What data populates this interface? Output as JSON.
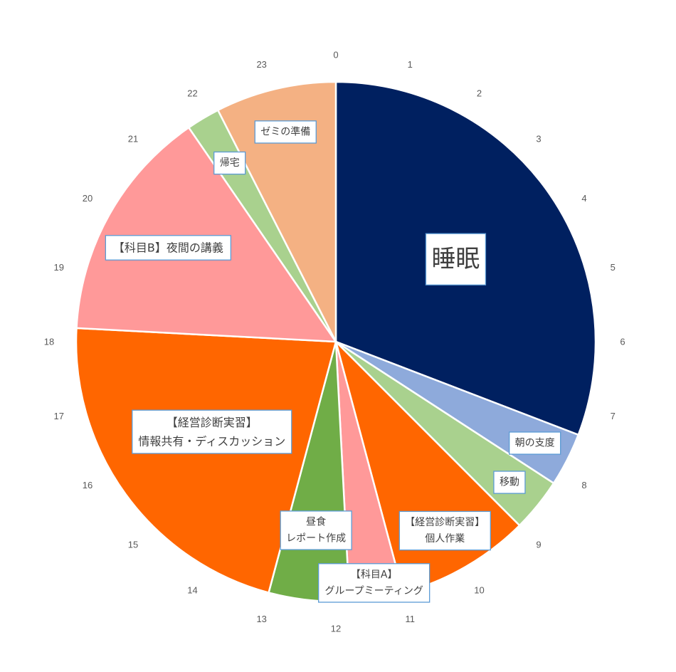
{
  "chart_data": {
    "type": "pie",
    "title": "",
    "start_hour": 0,
    "hour_labels": [
      "0",
      "1",
      "2",
      "3",
      "4",
      "5",
      "6",
      "7",
      "8",
      "9",
      "10",
      "11",
      "12",
      "13",
      "14",
      "15",
      "16",
      "17",
      "18",
      "19",
      "20",
      "21",
      "22",
      "23"
    ],
    "slices": [
      {
        "lines": [
          "睡眠"
        ],
        "value": 7.4,
        "color": "#002060"
      },
      {
        "lines": [
          "朝の支度"
        ],
        "value": 0.8,
        "color": "#8eaadb"
      },
      {
        "lines": [
          "移動"
        ],
        "value": 0.8,
        "color": "#a9d18e"
      },
      {
        "lines": [
          "【経営診断実習】",
          "個人作業"
        ],
        "value": 2.0,
        "color": "#ff6600"
      },
      {
        "lines": [
          "【科目A】",
          "グループミーティング"
        ],
        "value": 0.8,
        "color": "#ff9999"
      },
      {
        "lines": [
          "昼食",
          "レポート作成"
        ],
        "value": 1.2,
        "color": "#70ad47"
      },
      {
        "lines": [
          "【経営診断実習】",
          "情報共有・ディスカッション"
        ],
        "value": 5.2,
        "color": "#ff6600"
      },
      {
        "lines": [
          "【科目B】夜間の講義"
        ],
        "value": 3.5,
        "color": "#ff9999"
      },
      {
        "lines": [
          "帰宅"
        ],
        "value": 0.5,
        "color": "#a9d18e"
      },
      {
        "lines": [
          "ゼミの準備"
        ],
        "value": 1.8,
        "color": "#f4b183"
      }
    ]
  }
}
